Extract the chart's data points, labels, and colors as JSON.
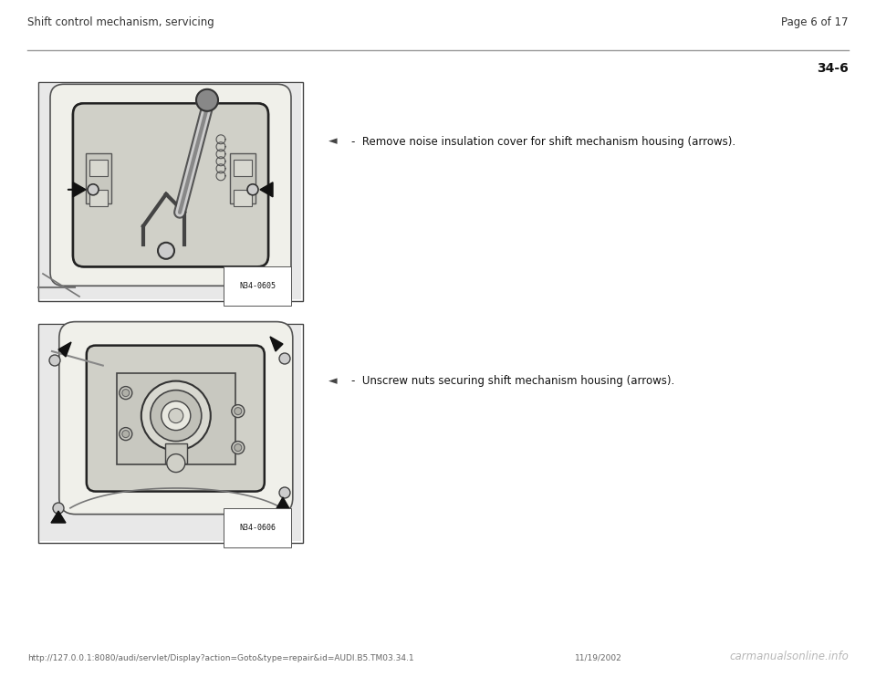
{
  "background_color": "#ffffff",
  "header_left": "Shift control mechanism, servicing",
  "header_right": "Page 6 of 17",
  "section_number": "34-6",
  "instruction1": "-  Remove noise insulation cover for shift mechanism housing (arrows).",
  "instruction2": "-  Unscrew nuts securing shift mechanism housing (arrows).",
  "image1_label": "N34-0605",
  "image2_label": "N34-0606",
  "footer_left": "http://127.0.0.1:8080/audi/servlet/Display?action=Goto&type=repair&id=AUDI.B5.TM03.34.1",
  "footer_right": "11/19/2002",
  "footer_logo": "carmanualsonline.info",
  "header_fontsize": 8.5,
  "body_fontsize": 8.5,
  "footer_fontsize": 6.5,
  "section_fontsize": 10,
  "bullet_symbol": "◄"
}
